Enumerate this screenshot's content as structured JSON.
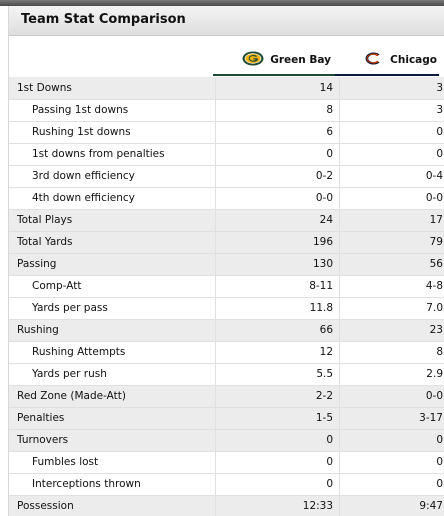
{
  "title": "Team Stat Comparison",
  "teams": {
    "home": {
      "name": "Green Bay",
      "logo_icon": "packers-g-logo-icon",
      "color": "#1f4b35"
    },
    "away": {
      "name": "Chicago",
      "logo_icon": "bears-c-logo-icon",
      "color": "#c83803"
    }
  },
  "rows": [
    {
      "label": "1st Downs",
      "gb": "14",
      "chi": "3",
      "type": "main"
    },
    {
      "label": "Passing 1st downs",
      "gb": "8",
      "chi": "3",
      "type": "sub"
    },
    {
      "label": "Rushing 1st downs",
      "gb": "6",
      "chi": "0",
      "type": "sub"
    },
    {
      "label": "1st downs from penalties",
      "gb": "0",
      "chi": "0",
      "type": "sub"
    },
    {
      "label": "3rd down efficiency",
      "gb": "0-2",
      "chi": "0-4",
      "type": "sub"
    },
    {
      "label": "4th down efficiency",
      "gb": "0-0",
      "chi": "0-0",
      "type": "sub"
    },
    {
      "label": "Total Plays",
      "gb": "24",
      "chi": "17",
      "type": "main"
    },
    {
      "label": "Total Yards",
      "gb": "196",
      "chi": "79",
      "type": "main"
    },
    {
      "label": "Passing",
      "gb": "130",
      "chi": "56",
      "type": "main"
    },
    {
      "label": "Comp-Att",
      "gb": "8-11",
      "chi": "4-8",
      "type": "sub"
    },
    {
      "label": "Yards per pass",
      "gb": "11.8",
      "chi": "7.0",
      "type": "sub"
    },
    {
      "label": "Rushing",
      "gb": "66",
      "chi": "23",
      "type": "main"
    },
    {
      "label": "Rushing Attempts",
      "gb": "12",
      "chi": "8",
      "type": "sub"
    },
    {
      "label": "Yards per rush",
      "gb": "5.5",
      "chi": "2.9",
      "type": "sub"
    },
    {
      "label": "Red Zone (Made-Att)",
      "gb": "2-2",
      "chi": "0-0",
      "type": "main"
    },
    {
      "label": "Penalties",
      "gb": "1-5",
      "chi": "3-17",
      "type": "main"
    },
    {
      "label": "Turnovers",
      "gb": "0",
      "chi": "0",
      "type": "main"
    },
    {
      "label": "Fumbles lost",
      "gb": "0",
      "chi": "0",
      "type": "sub"
    },
    {
      "label": "Interceptions thrown",
      "gb": "0",
      "chi": "0",
      "type": "sub"
    },
    {
      "label": "Possession",
      "gb": "12:33",
      "chi": "9:47",
      "type": "main"
    }
  ]
}
